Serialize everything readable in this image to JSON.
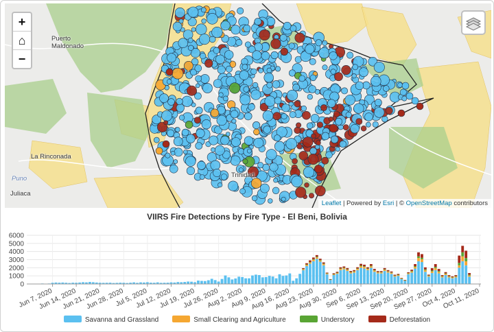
{
  "map": {
    "zoom_in": "+",
    "home": "⌂",
    "zoom_out": "−",
    "layers_icon": "layers-icon",
    "places": [
      {
        "name": "Puerto\nMaldonado"
      },
      {
        "name": "La Rinconada"
      },
      {
        "name": "Puno",
        "water": true
      },
      {
        "name": "Juliaca"
      },
      {
        "name": "Trinidad"
      }
    ],
    "attribution": {
      "leaflet": "Leaflet",
      "sep1": " | Powered by ",
      "esri": "Esri",
      "sep2": " | © ",
      "osm": "OpenStreetMap",
      "tail": " contributors"
    }
  },
  "colors": {
    "savanna": "#5bc0f0",
    "clearing": "#f5a732",
    "understory": "#59a534",
    "deforestation": "#a52a1a"
  },
  "chart_data": {
    "type": "bar",
    "stacked": true,
    "title": "VIIRS Fire Detections by Fire Type - El Beni, Bolivia",
    "ylim": [
      0,
      6000
    ],
    "yticks": [
      0,
      1000,
      2000,
      3000,
      4000,
      5000,
      6000
    ],
    "xticklabels": [
      "Jun 7, 2020",
      "Jun 14, 2020",
      "Jun 21, 2020",
      "Jun 28, 2020",
      "Jul 5, 2020",
      "Jul 12, 2020",
      "Jul 19, 2020",
      "Jul 26, 2020",
      "Aug 2, 2020",
      "Aug 9, 2020",
      "Aug 16, 2020",
      "Aug 23, 2020",
      "Aug 30, 2020",
      "Sep 6, 2020",
      "Sep 13, 2020",
      "Sep 20, 2020",
      "Sep 27, 2020",
      "Oct 4, 2020",
      "Oct 11, 2020"
    ],
    "x_start": "Jun 1, 2020",
    "series": [
      {
        "name": "Savanna and Grassland",
        "values": [
          20,
          20,
          40,
          60,
          40,
          60,
          150,
          180,
          160,
          180,
          150,
          120,
          160,
          150,
          180,
          220,
          200,
          250,
          220,
          180,
          150,
          140,
          150,
          160,
          120,
          140,
          160,
          150,
          120,
          160,
          200,
          140,
          200,
          180,
          220,
          160,
          150,
          200,
          140,
          150,
          160,
          200,
          180,
          240,
          220,
          250,
          300,
          280,
          220,
          420,
          380,
          360,
          460,
          640,
          480,
          300,
          620,
          1050,
          820,
          560,
          680,
          900,
          850,
          700,
          700,
          1050,
          1150,
          1100,
          820,
          850,
          1000,
          920,
          700,
          1200,
          1000,
          1050,
          1300,
          400,
          700,
          1250,
          1700,
          2200,
          2500,
          2800,
          3100,
          2750,
          2300,
          1200,
          500,
          1100,
          1250,
          1700,
          1800,
          1600,
          1300,
          1400,
          1700,
          2000,
          1900,
          1700,
          2000,
          1500,
          1300,
          1300,
          1600,
          1400,
          1250,
          900,
          1000,
          600,
          400,
          1200,
          1400,
          1900,
          2800,
          2700,
          1500,
          900,
          1350,
          1700,
          1300,
          800,
          1100,
          800,
          700,
          800,
          2000,
          2800,
          2300,
          900
        ]
      },
      {
        "name": "Small Clearing and Agriculture",
        "values": [
          0,
          0,
          0,
          0,
          0,
          0,
          0,
          0,
          0,
          0,
          0,
          0,
          0,
          0,
          0,
          0,
          0,
          0,
          0,
          0,
          0,
          0,
          0,
          0,
          0,
          0,
          0,
          0,
          0,
          0,
          0,
          0,
          0,
          0,
          0,
          0,
          0,
          0,
          0,
          0,
          0,
          0,
          0,
          0,
          0,
          0,
          0,
          0,
          0,
          0,
          0,
          0,
          0,
          0,
          0,
          0,
          0,
          0,
          0,
          0,
          0,
          0,
          0,
          0,
          0,
          0,
          0,
          0,
          0,
          0,
          0,
          0,
          0,
          0,
          0,
          0,
          0,
          0,
          0,
          0,
          100,
          150,
          150,
          180,
          180,
          150,
          150,
          80,
          40,
          80,
          100,
          150,
          150,
          150,
          130,
          130,
          150,
          200,
          200,
          150,
          180,
          150,
          120,
          120,
          150,
          130,
          120,
          100,
          100,
          60,
          40,
          100,
          150,
          200,
          400,
          350,
          200,
          100,
          200,
          250,
          200,
          120,
          150,
          120,
          100,
          120,
          300,
          600,
          500,
          150
        ]
      },
      {
        "name": "Understory",
        "values": [
          0,
          0,
          0,
          0,
          0,
          0,
          0,
          0,
          0,
          0,
          0,
          0,
          0,
          0,
          0,
          0,
          0,
          0,
          0,
          0,
          0,
          0,
          0,
          0,
          0,
          0,
          0,
          0,
          0,
          0,
          0,
          0,
          0,
          0,
          0,
          0,
          0,
          0,
          0,
          0,
          0,
          0,
          0,
          0,
          0,
          0,
          0,
          0,
          0,
          0,
          0,
          0,
          0,
          0,
          0,
          0,
          0,
          0,
          0,
          0,
          0,
          0,
          0,
          0,
          0,
          0,
          0,
          0,
          0,
          0,
          0,
          0,
          0,
          0,
          0,
          0,
          0,
          0,
          0,
          0,
          50,
          60,
          60,
          80,
          80,
          60,
          60,
          40,
          20,
          40,
          40,
          60,
          60,
          60,
          50,
          50,
          60,
          80,
          80,
          60,
          70,
          60,
          50,
          50,
          60,
          50,
          50,
          40,
          40,
          30,
          20,
          40,
          60,
          100,
          200,
          180,
          100,
          50,
          100,
          150,
          100,
          50,
          60,
          50,
          40,
          50,
          300,
          500,
          400,
          100
        ]
      },
      {
        "name": "Deforestation",
        "values": [
          0,
          0,
          0,
          0,
          0,
          0,
          0,
          0,
          0,
          0,
          0,
          0,
          0,
          0,
          0,
          0,
          0,
          0,
          0,
          0,
          0,
          0,
          0,
          0,
          0,
          0,
          0,
          0,
          0,
          0,
          0,
          0,
          0,
          0,
          0,
          0,
          0,
          0,
          0,
          0,
          0,
          0,
          0,
          0,
          0,
          0,
          0,
          0,
          0,
          0,
          0,
          0,
          0,
          0,
          0,
          0,
          0,
          0,
          0,
          0,
          0,
          0,
          0,
          0,
          0,
          0,
          0,
          0,
          0,
          0,
          0,
          0,
          0,
          0,
          0,
          0,
          0,
          0,
          0,
          0,
          100,
          150,
          200,
          200,
          200,
          150,
          150,
          80,
          40,
          100,
          110,
          150,
          150,
          150,
          120,
          130,
          150,
          200,
          200,
          150,
          200,
          150,
          120,
          120,
          150,
          130,
          120,
          100,
          100,
          60,
          40,
          100,
          150,
          250,
          500,
          450,
          250,
          100,
          300,
          350,
          250,
          120,
          150,
          120,
          100,
          120,
          900,
          800,
          900,
          200
        ]
      }
    ]
  }
}
